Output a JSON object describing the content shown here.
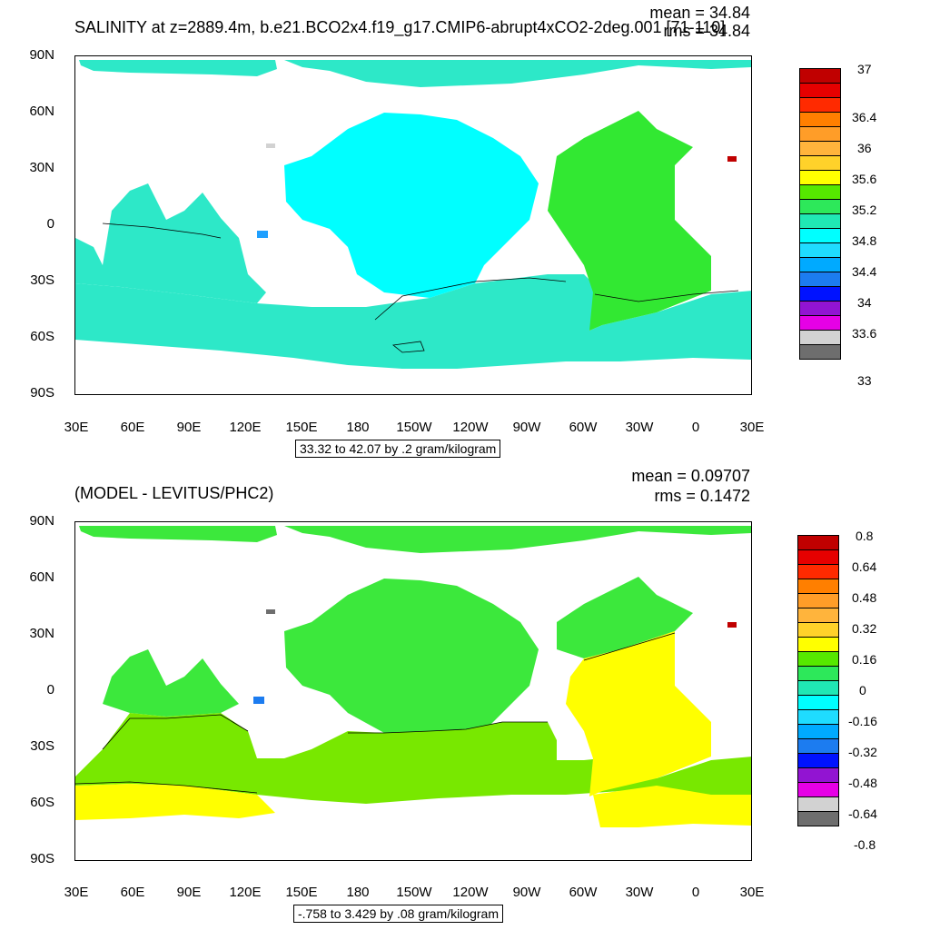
{
  "colors": {
    "cmap": [
      "#c00000",
      "#e60000",
      "#ff2a00",
      "#ff7f00",
      "#ff9d28",
      "#ffb43c",
      "#ffd22a",
      "#ffff00",
      "#56e800",
      "#2de85a",
      "#20e8b4",
      "#00ffff",
      "#1fdcff",
      "#00aaff",
      "#1c7cf0",
      "#0012ff",
      "#9214d2",
      "#e600e6",
      "#d2d2d2",
      "#6e6e6e"
    ],
    "ocean_top_main": "#00ffff",
    "ocean_top_south": "#2de8c8",
    "ocean_top_atlantic": "#32e832",
    "ocean_bot_green": "#3ce83c",
    "ocean_bot_lime": "#78e800",
    "ocean_bot_yellow": "#ffff00"
  },
  "lat_labels": [
    "90N",
    "60N",
    "30N",
    "0",
    "30S",
    "60S",
    "90S"
  ],
  "lon_labels": [
    "30E",
    "60E",
    "90E",
    "120E",
    "150E",
    "180",
    "150W",
    "120W",
    "90W",
    "60W",
    "30W",
    "0",
    "30E"
  ],
  "top": {
    "title": "SALINITY at z=2889.4m, b.e21.BCO2x4.f19_g17.CMIP6-abrupt4xCO2-2deg.001 [71-110]",
    "mean": "mean = 34.84",
    "rms": "rms = 34.84",
    "subtitle": "33.32 to 42.07 by .2 gram/kilogram",
    "colorbar_labels": [
      "37",
      "36.4",
      "36",
      "35.6",
      "35.2",
      "34.8",
      "34.4",
      "34",
      "33.6",
      "33"
    ]
  },
  "bottom": {
    "title": "(MODEL - LEVITUS/PHC2)",
    "mean": "mean = 0.09707",
    "rms": "rms = 0.1472",
    "subtitle": "-.758 to 3.429 by .08 gram/kilogram",
    "colorbar_labels": [
      "0.8",
      "0.64",
      "0.48",
      "0.32",
      "0.16",
      "0",
      "-0.16",
      "-0.32",
      "-0.48",
      "-0.64",
      "-0.8"
    ]
  }
}
